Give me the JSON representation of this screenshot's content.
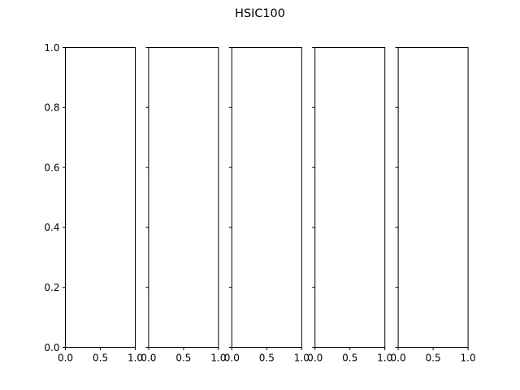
{
  "chart_data": {
    "type": "line",
    "title": "HSIC100",
    "panels": [
      {
        "xlim": [
          0.0,
          1.0
        ],
        "ylim": [
          0.0,
          1.0
        ],
        "x_ticks": [
          "0.0",
          "0.5",
          "1.0"
        ],
        "y_ticks": [
          "0.0",
          "0.2",
          "0.4",
          "0.6",
          "0.8",
          "1.0"
        ],
        "series": []
      },
      {
        "xlim": [
          0.0,
          1.0
        ],
        "ylim": [
          0.0,
          1.0
        ],
        "x_ticks": [
          "0.0",
          "0.5",
          "1.0"
        ],
        "y_ticks": [],
        "series": []
      },
      {
        "xlim": [
          0.0,
          1.0
        ],
        "ylim": [
          0.0,
          1.0
        ],
        "x_ticks": [
          "0.0",
          "0.5",
          "1.0"
        ],
        "y_ticks": [],
        "series": []
      },
      {
        "xlim": [
          0.0,
          1.0
        ],
        "ylim": [
          0.0,
          1.0
        ],
        "x_ticks": [
          "0.0",
          "0.5",
          "1.0"
        ],
        "y_ticks": [],
        "series": []
      },
      {
        "xlim": [
          0.0,
          1.0
        ],
        "ylim": [
          0.0,
          1.0
        ],
        "x_ticks": [
          "0.0",
          "0.5",
          "1.0"
        ],
        "y_ticks": [],
        "series": []
      }
    ],
    "shared_y": true,
    "grid": false
  }
}
